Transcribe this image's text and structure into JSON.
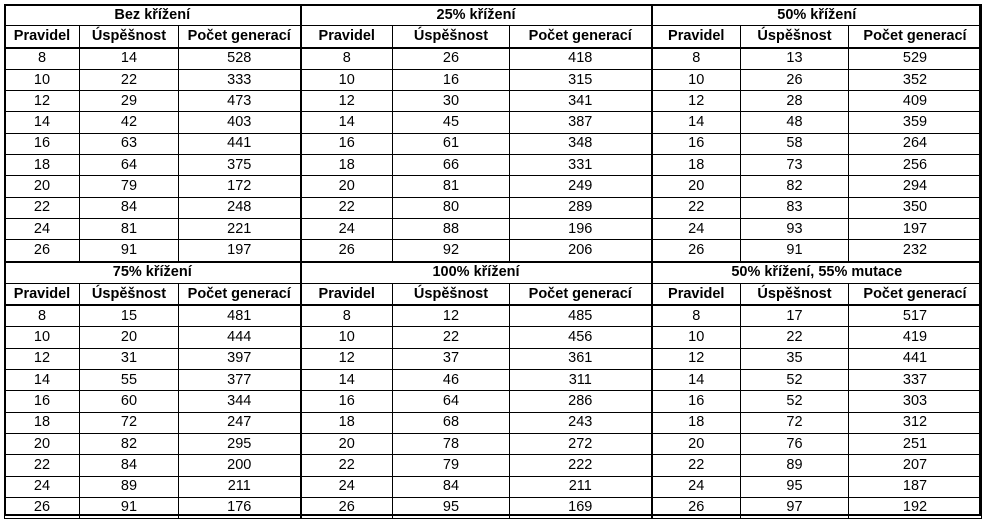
{
  "groups": [
    {
      "title": "Bez křížení",
      "headers": [
        "Pravidel",
        "Úspěšnost",
        "Počet generací"
      ],
      "rows": [
        [
          "8",
          "14",
          "528"
        ],
        [
          "10",
          "22",
          "333"
        ],
        [
          "12",
          "29",
          "473"
        ],
        [
          "14",
          "42",
          "403"
        ],
        [
          "16",
          "63",
          "441"
        ],
        [
          "18",
          "64",
          "375"
        ],
        [
          "20",
          "79",
          "172"
        ],
        [
          "22",
          "84",
          "248"
        ],
        [
          "24",
          "81",
          "221"
        ],
        [
          "26",
          "91",
          "197"
        ]
      ]
    },
    {
      "title": "25% křížení",
      "headers": [
        "Pravidel",
        "Úspěšnost",
        "Počet generací"
      ],
      "rows": [
        [
          "8",
          "26",
          "418"
        ],
        [
          "10",
          "16",
          "315"
        ],
        [
          "12",
          "30",
          "341"
        ],
        [
          "14",
          "45",
          "387"
        ],
        [
          "16",
          "61",
          "348"
        ],
        [
          "18",
          "66",
          "331"
        ],
        [
          "20",
          "81",
          "249"
        ],
        [
          "22",
          "80",
          "289"
        ],
        [
          "24",
          "88",
          "196"
        ],
        [
          "26",
          "92",
          "206"
        ]
      ]
    },
    {
      "title": "50% křížení",
      "headers": [
        "Pravidel",
        "Úspěšnost",
        "Počet generací"
      ],
      "rows": [
        [
          "8",
          "13",
          "529"
        ],
        [
          "10",
          "26",
          "352"
        ],
        [
          "12",
          "28",
          "409"
        ],
        [
          "14",
          "48",
          "359"
        ],
        [
          "16",
          "58",
          "264"
        ],
        [
          "18",
          "73",
          "256"
        ],
        [
          "20",
          "82",
          "294"
        ],
        [
          "22",
          "83",
          "350"
        ],
        [
          "24",
          "93",
          "197"
        ],
        [
          "26",
          "91",
          "232"
        ]
      ]
    },
    {
      "title": "75% křížení",
      "headers": [
        "Pravidel",
        "Úspěšnost",
        "Počet generací"
      ],
      "rows": [
        [
          "8",
          "15",
          "481"
        ],
        [
          "10",
          "20",
          "444"
        ],
        [
          "12",
          "31",
          "397"
        ],
        [
          "14",
          "55",
          "377"
        ],
        [
          "16",
          "60",
          "344"
        ],
        [
          "18",
          "72",
          "247"
        ],
        [
          "20",
          "82",
          "295"
        ],
        [
          "22",
          "84",
          "200"
        ],
        [
          "24",
          "89",
          "211"
        ],
        [
          "26",
          "91",
          "176"
        ]
      ]
    },
    {
      "title": "100% křížení",
      "headers": [
        "Pravidel",
        "Úspěšnost",
        "Počet generací"
      ],
      "rows": [
        [
          "8",
          "12",
          "485"
        ],
        [
          "10",
          "22",
          "456"
        ],
        [
          "12",
          "37",
          "361"
        ],
        [
          "14",
          "46",
          "311"
        ],
        [
          "16",
          "64",
          "286"
        ],
        [
          "18",
          "68",
          "243"
        ],
        [
          "20",
          "78",
          "272"
        ],
        [
          "22",
          "79",
          "222"
        ],
        [
          "24",
          "84",
          "211"
        ],
        [
          "26",
          "95",
          "169"
        ]
      ]
    },
    {
      "title": "50% křížení, 55% mutace",
      "headers": [
        "Pravidel",
        "Úspěšnost",
        "Počet generací"
      ],
      "rows": [
        [
          "8",
          "17",
          "517"
        ],
        [
          "10",
          "22",
          "419"
        ],
        [
          "12",
          "35",
          "441"
        ],
        [
          "14",
          "52",
          "337"
        ],
        [
          "16",
          "52",
          "303"
        ],
        [
          "18",
          "72",
          "312"
        ],
        [
          "20",
          "76",
          "251"
        ],
        [
          "22",
          "89",
          "207"
        ],
        [
          "24",
          "95",
          "187"
        ],
        [
          "26",
          "97",
          "192"
        ]
      ]
    }
  ]
}
